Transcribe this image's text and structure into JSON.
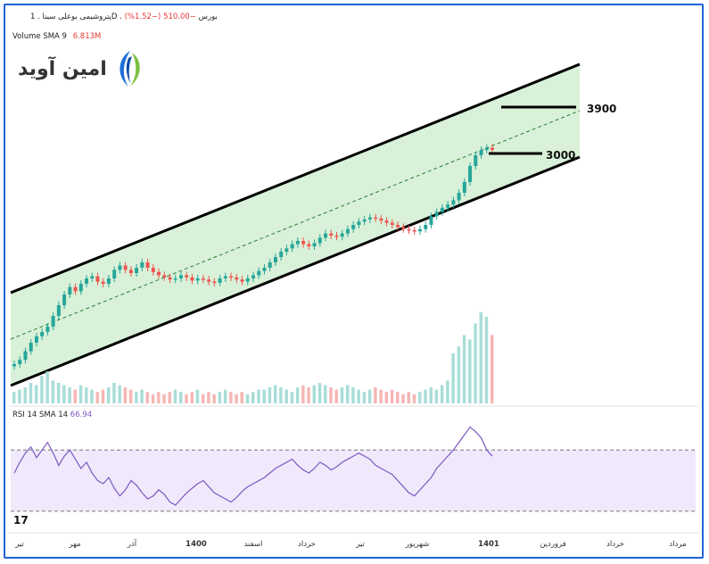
{
  "header": {
    "title": "پتروشیمی بوعلی سینا . 1D . بورس",
    "change": "−510.00 (−1.52%)",
    "volume_label": "Volume SMA 9",
    "volume_value": "6.813M",
    "rsi_label": "RSI 14 SMA 14",
    "rsi_value": "66.94"
  },
  "logo": {
    "text": "امین آوید",
    "color_blue": "#1e6fd9",
    "color_green": "#7cc043"
  },
  "brand_mark": "17",
  "colors": {
    "channel_fill": "#d8f1d8",
    "up": "#26a69a",
    "down": "#ef5350",
    "rsi_line": "#7e57c2",
    "rsi_band": "#efe9fb",
    "frame": "#1f63d8"
  },
  "chart_data": [
    {
      "type": "candlestick",
      "title": "",
      "x_ticks": [
        "تیر",
        "مهر",
        "آذر",
        "1400",
        "اسفند",
        "خرداد",
        "تیر",
        "شهریور",
        "1401",
        "فروردین",
        "خرداد",
        "مرداد"
      ],
      "level_labels": [
        "3900",
        "3000"
      ],
      "levels": [
        3900,
        3000
      ],
      "channel": {
        "upper": "rising",
        "lower": "rising",
        "mid": "dashed"
      },
      "series": [
        {
          "values": [
            1500,
            1540,
            1620,
            1700,
            1760,
            1800,
            1850,
            1950,
            2050,
            2150,
            2220,
            2180,
            2250,
            2300,
            2320,
            2270,
            2250,
            2300,
            2380,
            2420,
            2380,
            2350,
            2400,
            2450,
            2400,
            2360,
            2330,
            2310,
            2290,
            2300,
            2330,
            2310,
            2280,
            2300,
            2290,
            2270,
            2260,
            2300,
            2320,
            2310,
            2290,
            2270,
            2300,
            2330,
            2370,
            2400,
            2450,
            2500,
            2550,
            2580,
            2620,
            2650,
            2620,
            2600,
            2630,
            2680,
            2720,
            2700,
            2690,
            2720,
            2760,
            2800,
            2830,
            2850,
            2870,
            2860,
            2840,
            2820,
            2800,
            2780,
            2760,
            2750,
            2740,
            2760,
            2800,
            2880,
            2920,
            2960,
            2990,
            3030,
            3100,
            3200,
            3350,
            3450,
            3500,
            3520,
            3500
          ]
        }
      ]
    },
    {
      "type": "bar",
      "title": "",
      "series": [
        {
          "values": [
            5,
            6,
            7,
            9,
            8,
            12,
            14,
            10,
            9,
            8,
            7,
            6,
            8,
            7,
            6,
            5,
            6,
            7,
            9,
            8,
            7,
            6,
            5,
            6,
            5,
            4,
            5,
            4,
            5,
            6,
            5,
            4,
            5,
            6,
            4,
            5,
            4,
            5,
            6,
            5,
            4,
            5,
            4,
            5,
            6,
            6,
            7,
            8,
            7,
            6,
            5,
            7,
            8,
            7,
            8,
            9,
            8,
            7,
            6,
            7,
            8,
            7,
            6,
            5,
            6,
            7,
            6,
            5,
            6,
            5,
            4,
            5,
            4,
            5,
            6,
            7,
            6,
            8,
            10,
            22,
            25,
            30,
            28,
            35,
            40,
            38,
            30
          ]
        }
      ]
    },
    {
      "type": "line",
      "title": "",
      "ylim": [
        20,
        90
      ],
      "series": [
        {
          "values": [
            55,
            62,
            68,
            72,
            65,
            70,
            75,
            68,
            60,
            66,
            70,
            64,
            58,
            62,
            55,
            50,
            48,
            52,
            45,
            40,
            44,
            50,
            47,
            42,
            38,
            40,
            44,
            41,
            36,
            34,
            38,
            42,
            45,
            48,
            50,
            46,
            42,
            40,
            38,
            36,
            39,
            43,
            46,
            48,
            50,
            52,
            55,
            58,
            60,
            62,
            64,
            60,
            57,
            55,
            58,
            62,
            60,
            57,
            59,
            62,
            64,
            66,
            68,
            66,
            64,
            60,
            58,
            56,
            54,
            50,
            46,
            42,
            40,
            44,
            48,
            52,
            58,
            62,
            66,
            70,
            75,
            80,
            85,
            82,
            78,
            70,
            66
          ]
        }
      ]
    }
  ]
}
